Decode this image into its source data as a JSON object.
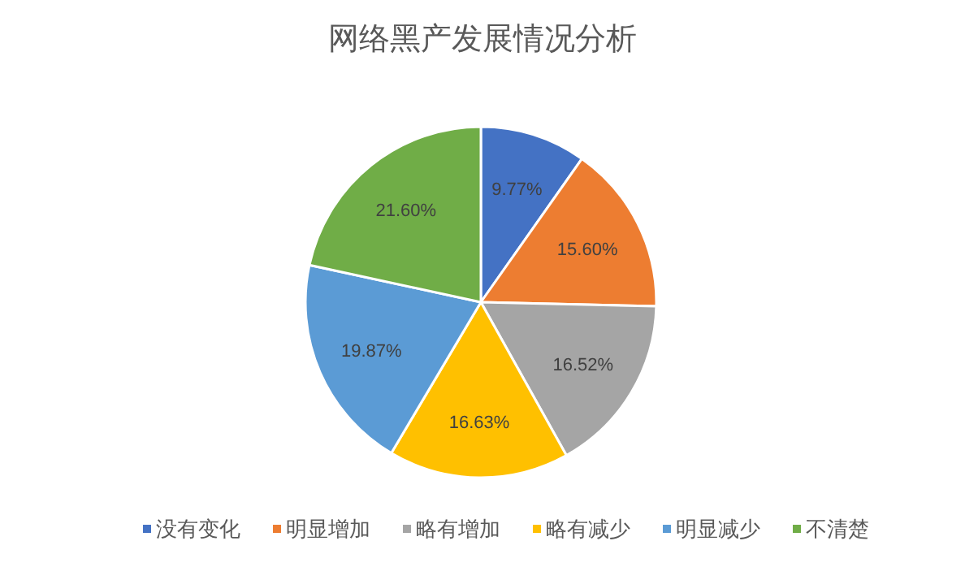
{
  "chart_data": {
    "type": "pie",
    "title": "网络黑产发展情况分析",
    "categories": [
      "没有变化",
      "明显增加",
      "略有增加",
      "略有减少",
      "明显减少",
      "不清楚"
    ],
    "values": [
      9.77,
      15.6,
      16.52,
      16.63,
      19.87,
      21.6
    ],
    "value_labels": [
      "9.77%",
      "15.60%",
      "16.52%",
      "16.63%",
      "19.87%",
      "21.60%"
    ],
    "colors": [
      "#4472c4",
      "#ed7d31",
      "#a5a5a5",
      "#ffc000",
      "#5b9bd5",
      "#70ad47"
    ],
    "legend": "bottom"
  }
}
